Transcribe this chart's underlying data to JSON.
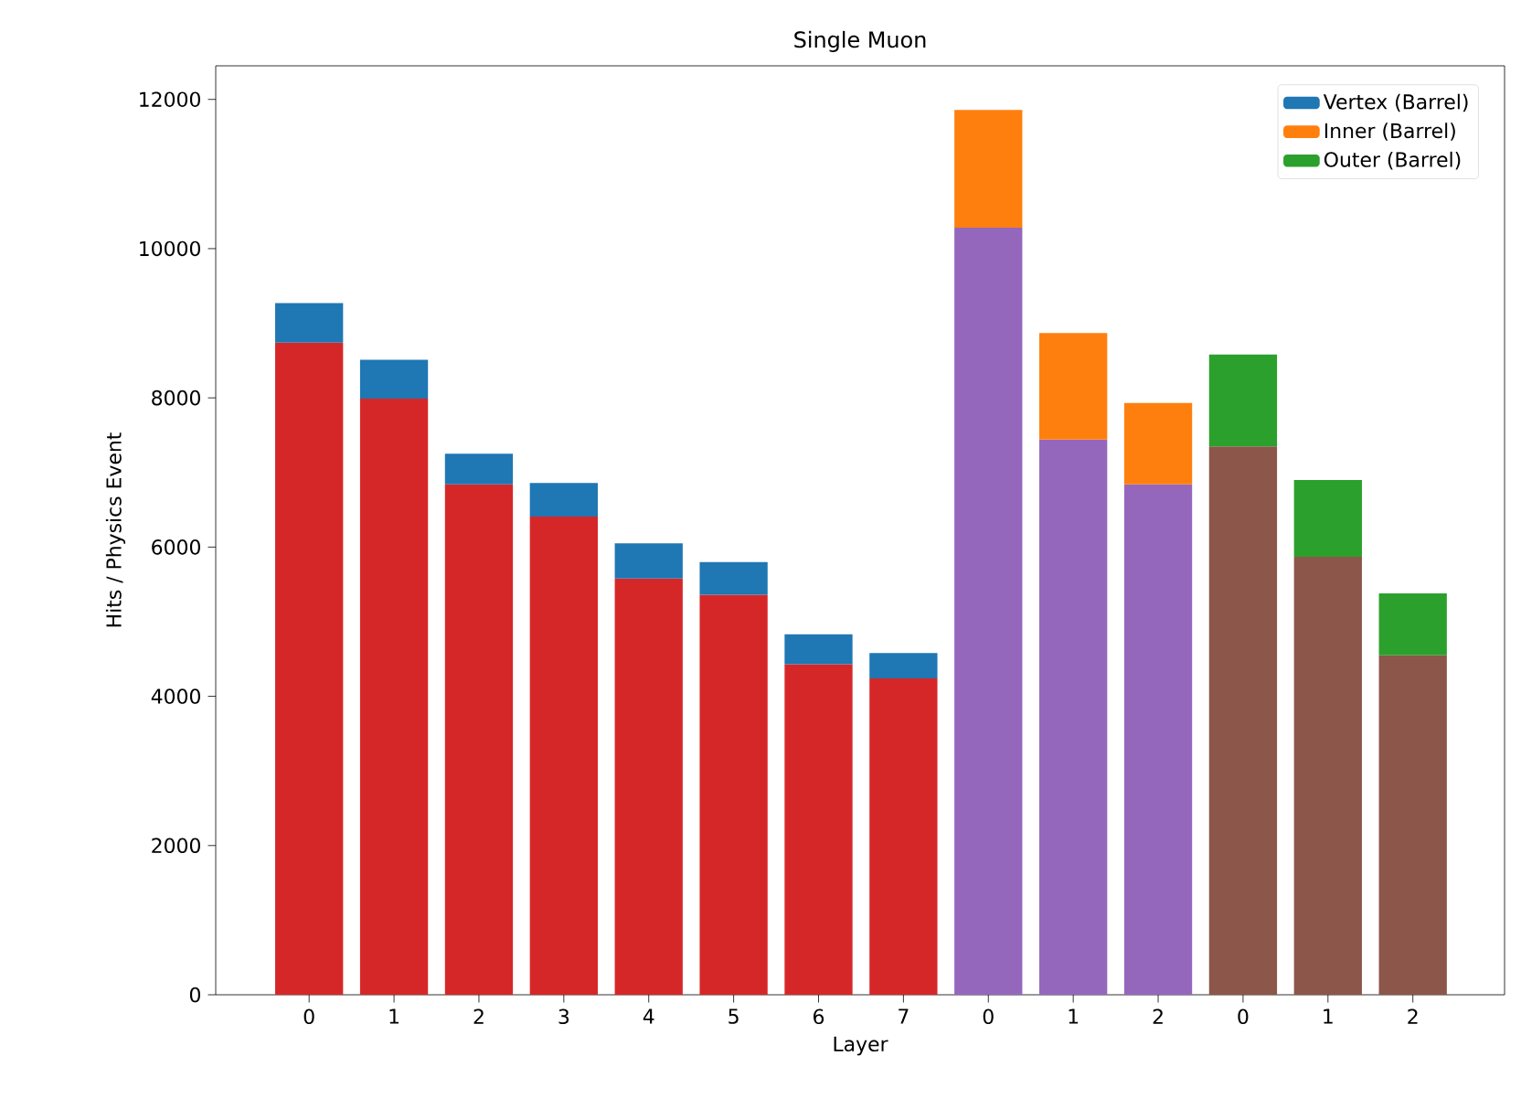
{
  "chart_data": {
    "type": "bar",
    "title": "Single Muon",
    "xlabel": "Layer",
    "ylabel": "Hits / Physics Event",
    "categories": [
      "0",
      "1",
      "2",
      "3",
      "4",
      "5",
      "6",
      "7",
      "0",
      "1",
      "2",
      "0",
      "1",
      "2"
    ],
    "stacked": true,
    "series": [
      {
        "colors": [
          "#d62728",
          "#d62728",
          "#d62728",
          "#d62728",
          "#d62728",
          "#d62728",
          "#d62728",
          "#d62728",
          "#9467bd",
          "#9467bd",
          "#9467bd",
          "#8c564b",
          "#8c564b",
          "#8c564b"
        ],
        "values": [
          8740,
          7990,
          6840,
          6410,
          5580,
          5360,
          4430,
          4240,
          10280,
          7440,
          6840,
          7350,
          5870,
          4550
        ]
      },
      {
        "name": "Vertex (Barrel)",
        "color": "#1f77b4",
        "values": [
          530,
          520,
          410,
          450,
          470,
          440,
          400,
          340,
          null,
          null,
          null,
          null,
          null,
          null
        ]
      },
      {
        "name": "Inner (Barrel)",
        "color": "#ff7f0e",
        "values": [
          null,
          null,
          null,
          null,
          null,
          null,
          null,
          null,
          1580,
          1430,
          1090,
          null,
          null,
          null
        ]
      },
      {
        "name": "Outer (Barrel)",
        "color": "#2ca02c",
        "values": [
          null,
          null,
          null,
          null,
          null,
          null,
          null,
          null,
          null,
          null,
          null,
          1230,
          1030,
          830
        ]
      }
    ],
    "ylim": [
      0,
      12450
    ],
    "yticks": [
      0,
      2000,
      4000,
      6000,
      8000,
      10000,
      12000
    ],
    "legend": "top right"
  }
}
